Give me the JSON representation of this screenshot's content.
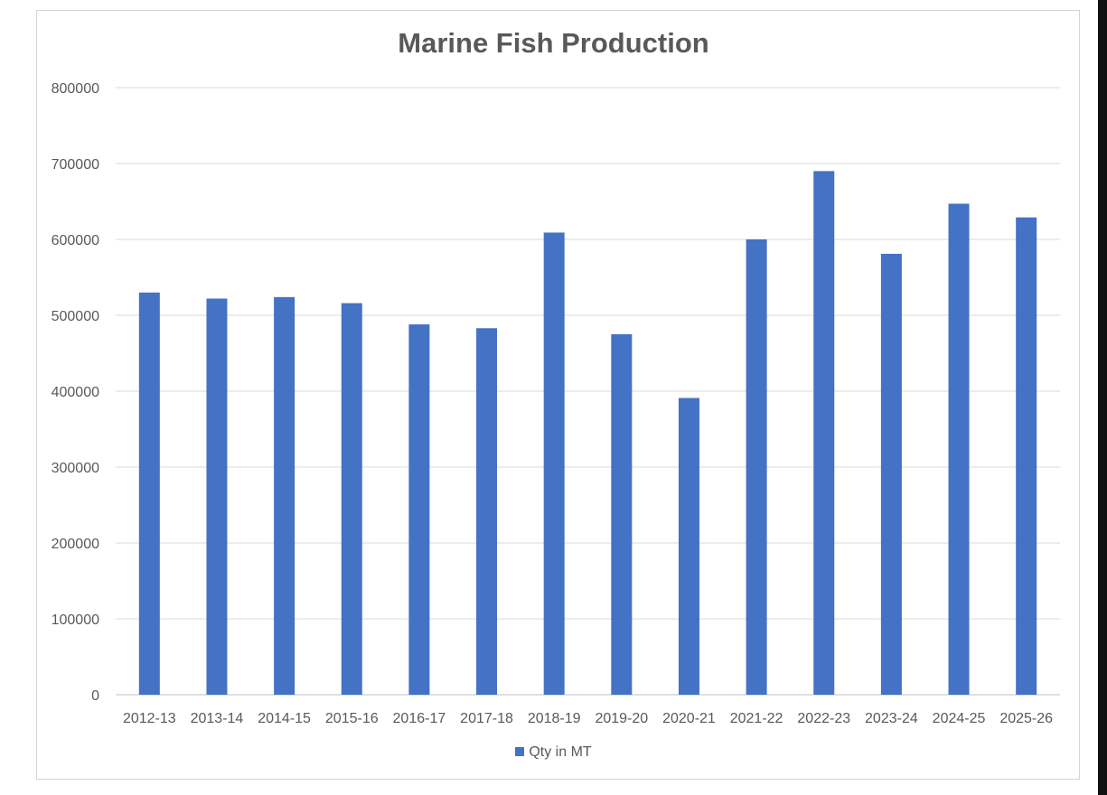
{
  "chart_data": {
    "type": "bar",
    "title": "Marine Fish Production",
    "categories": [
      "2012-13",
      "2013-14",
      "2014-15",
      "2015-16",
      "2016-17",
      "2017-18",
      "2018-19",
      "2019-20",
      "2020-21",
      "2021-22",
      "2022-23",
      "2023-24",
      "2024-25",
      "2025-26"
    ],
    "series": [
      {
        "name": "Qty in MT",
        "color": "#4472c4",
        "values": [
          530000,
          522000,
          524000,
          516000,
          488000,
          483000,
          609000,
          475000,
          391000,
          600000,
          690000,
          581000,
          647000,
          629000
        ]
      }
    ],
    "yticks": [
      "0",
      "100000",
      "200000",
      "300000",
      "400000",
      "500000",
      "600000",
      "700000",
      "800000"
    ],
    "ylim": [
      0,
      800000
    ],
    "xlabel": "",
    "ylabel": "",
    "grid": true,
    "legend_position": "bottom",
    "gridline_color": "#d9d9d9",
    "axis_color": "#bfbfbf"
  }
}
